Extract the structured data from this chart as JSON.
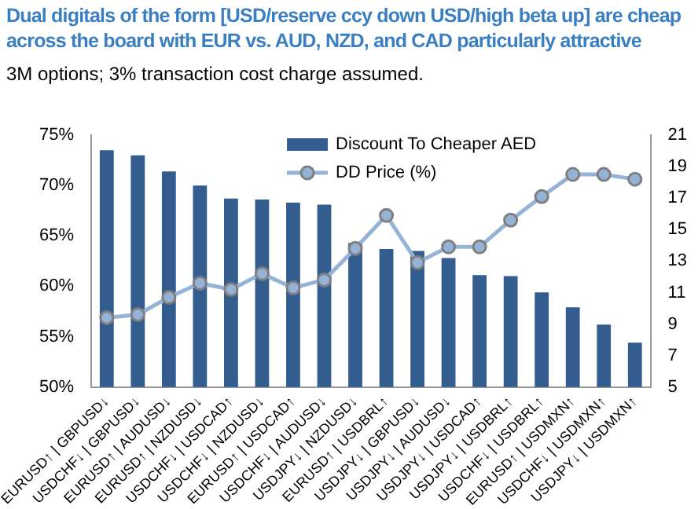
{
  "chart_data": {
    "type": "bar",
    "title": "Dual digitals of the form [USD/reserve ccy down USD/high beta up] are cheap across the board with EUR vs. AUD, NZD, and CAD particularly attractive",
    "subtitle": "3M options; 3% transaction cost charge assumed.",
    "categories": [
      "EURUSD↑ | GBPUSD↓",
      "USDCHF↓ | GBPUSD↓",
      "EURUSD↑ | AUDUSD↓",
      "EURUSD↑ | NZDUSD↓",
      "USDCHF↓ | USDCAD↑",
      "USDCHF↓ | NZDUSD↓",
      "EURUSD↑ | USDCAD↑",
      "USDCHF↓ | AUDUSD↓",
      "USDJPY↓ | NZDUSD↓",
      "EURUSD↑ | USDBRL↑",
      "USDJPY↓ | GBPUSD↓",
      "USDJPY↓ | AUDUSD↓",
      "USDJPY↓ | USDCAD↑",
      "USDJPY↓ | USDBRL↑",
      "USDCHF↓ | USDBRL↑",
      "EURUSD↑ | USDMXN↑",
      "USDCHF↓ | USDMXN↑",
      "USDJPY↓ | USDMXN↑"
    ],
    "series": [
      {
        "name": "Discount To Cheaper AED",
        "color": "#335c8f",
        "values": [
          73.5,
          73.0,
          71.4,
          70.0,
          68.7,
          68.6,
          68.3,
          68.1,
          64.3,
          63.7,
          63.5,
          62.8,
          61.1,
          61.0,
          59.4,
          57.9,
          56.2,
          54.4
        ]
      },
      {
        "name": "DD Price (%)",
        "type": "line",
        "axis": "y2",
        "color": "#95b3d7",
        "values": [
          9.4,
          9.6,
          10.7,
          11.6,
          11.2,
          12.2,
          11.3,
          11.8,
          13.8,
          15.9,
          12.9,
          13.9,
          13.9,
          15.6,
          17.1,
          18.5,
          18.5,
          18.2
        ]
      }
    ],
    "ylim": [
      50,
      75
    ],
    "yticks": [
      {
        "value": 50,
        "label": "50%"
      },
      {
        "value": 55,
        "label": "55%"
      },
      {
        "value": 60,
        "label": "60%"
      },
      {
        "value": 65,
        "label": "65%"
      },
      {
        "value": 70,
        "label": "70%"
      },
      {
        "value": 75,
        "label": "75%"
      }
    ],
    "y2lim": [
      5,
      21
    ],
    "y2ticks": [
      5,
      7,
      9,
      11,
      13,
      15,
      17,
      19,
      21
    ],
    "grid": false,
    "legend": "top right",
    "marker": "circle",
    "line_style": "solid"
  }
}
